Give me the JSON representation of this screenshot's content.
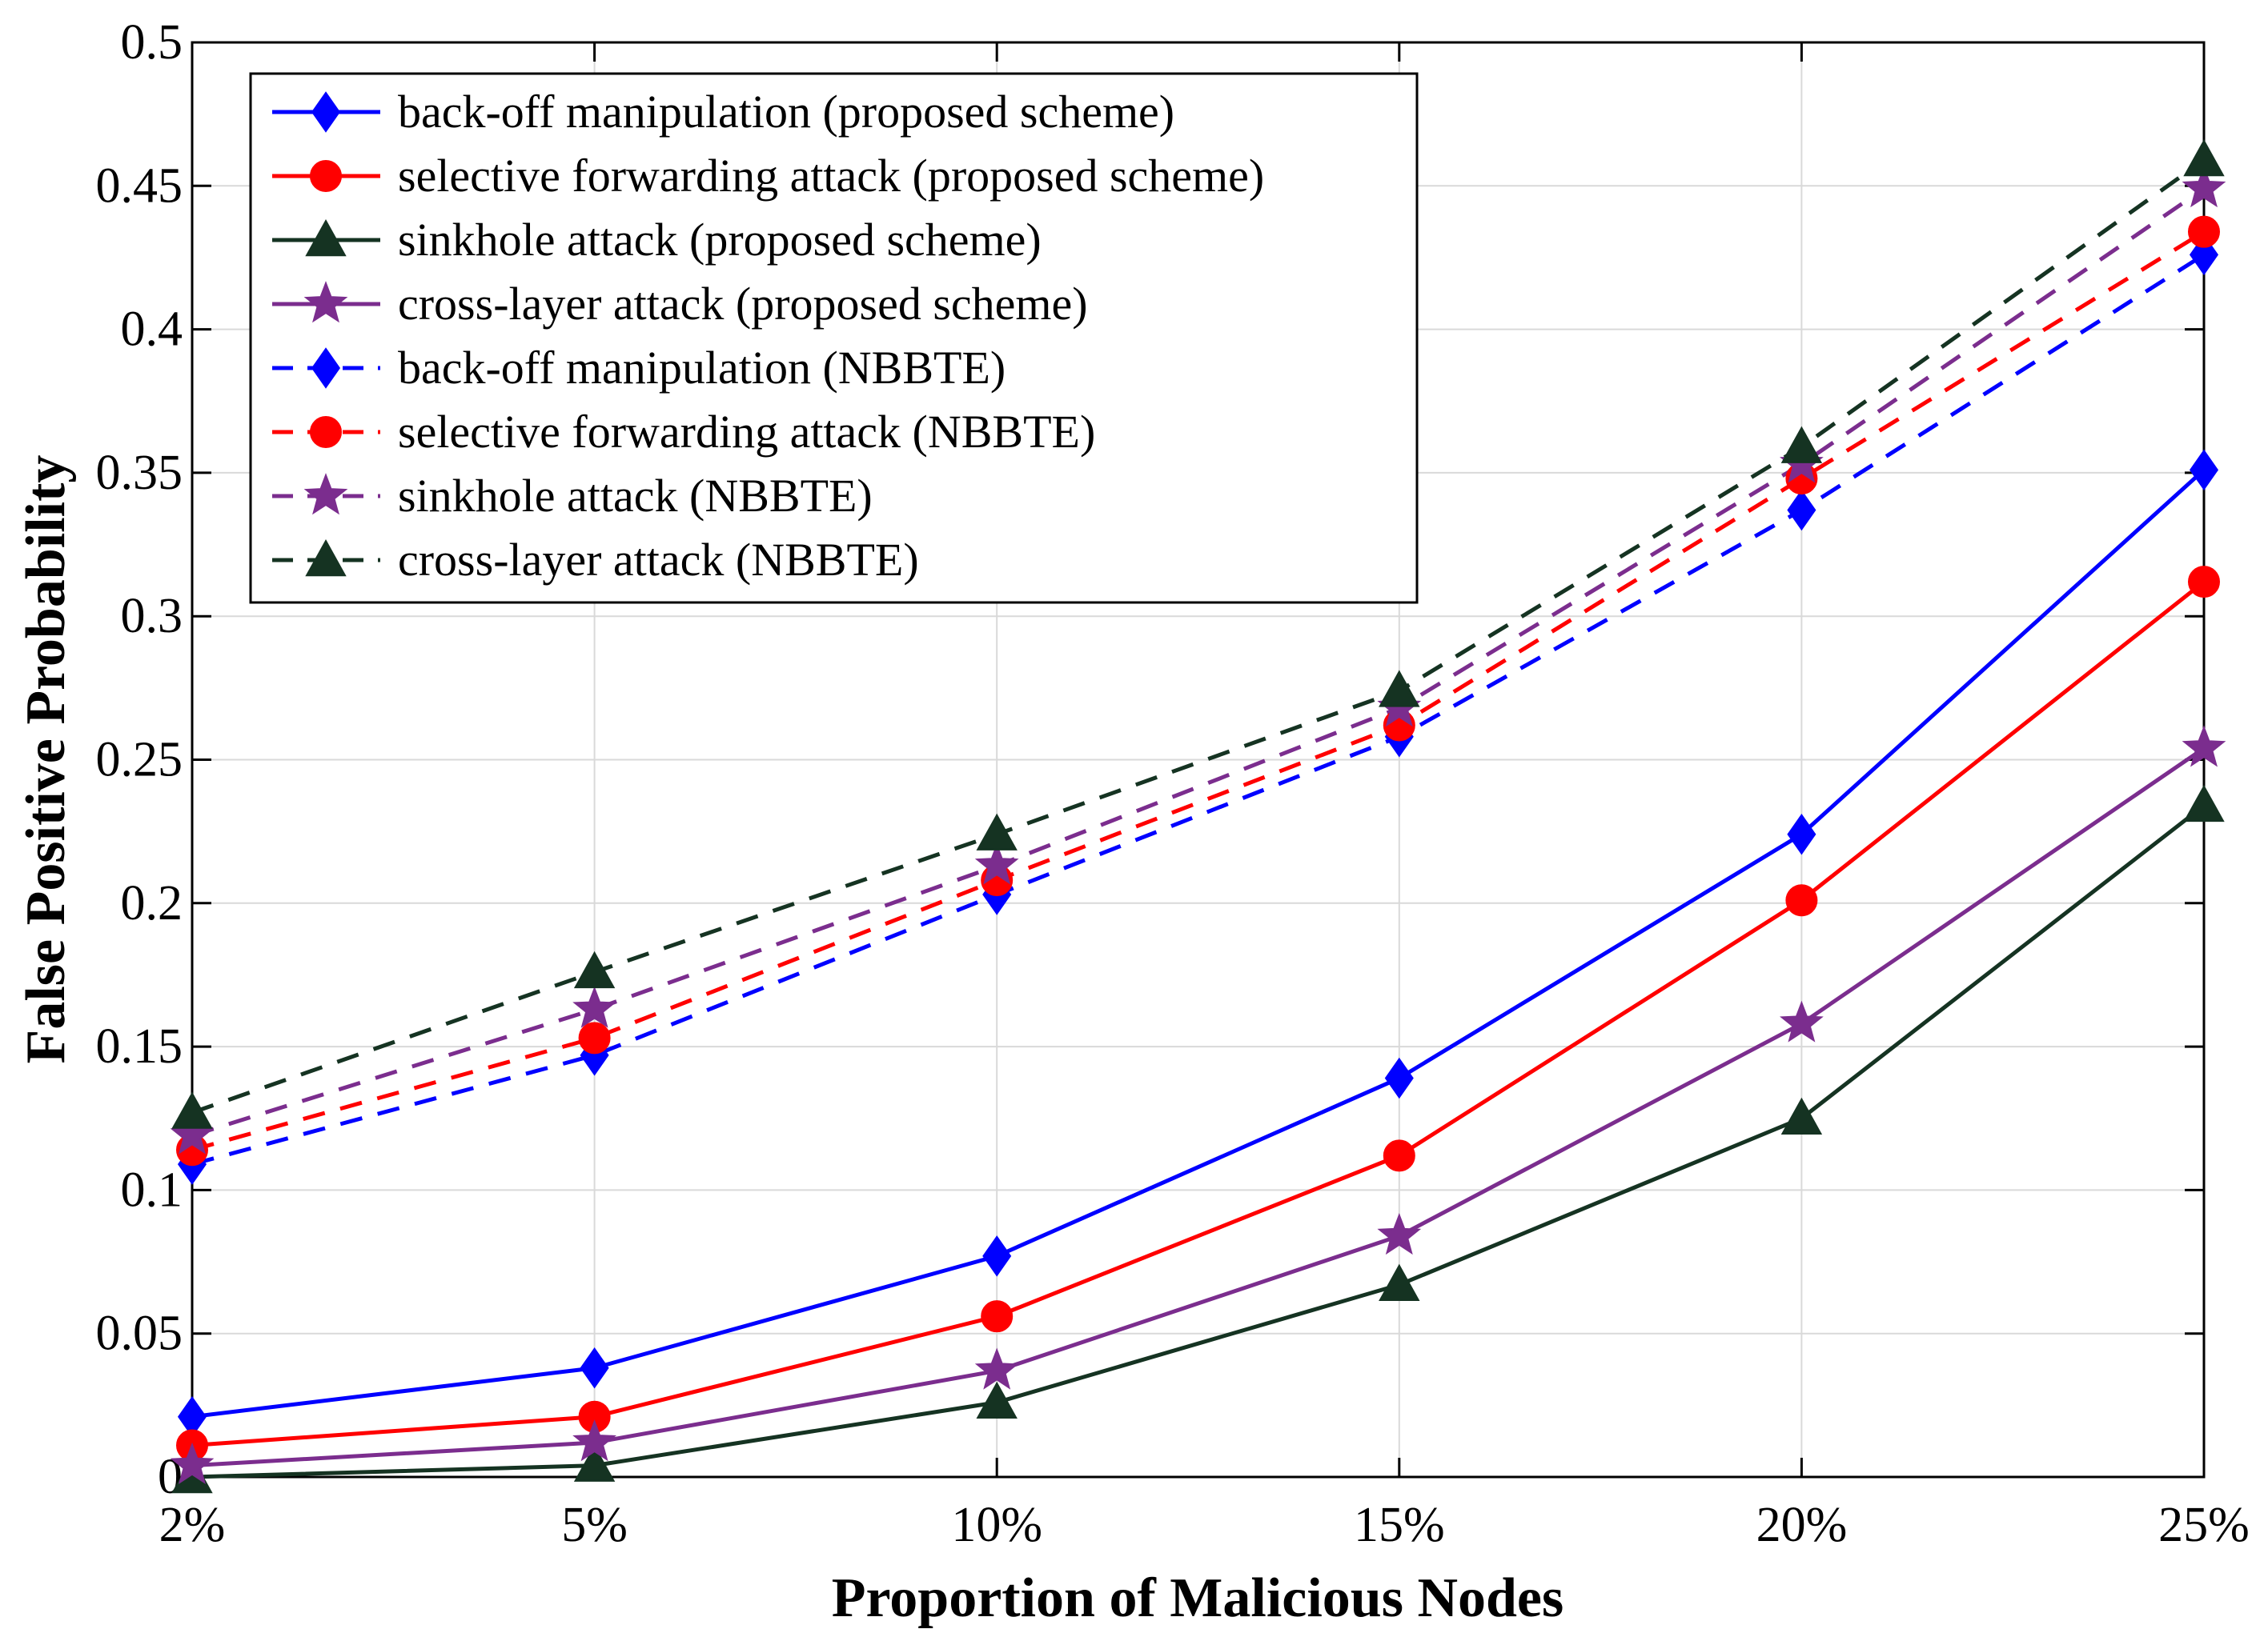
{
  "chart_data": {
    "type": "line",
    "xlabel": "Proportion of Malicious Nodes",
    "ylabel": "False Positive Probability",
    "categories": [
      "2%",
      "5%",
      "10%",
      "15%",
      "20%",
      "25%"
    ],
    "ylim": [
      0,
      0.5
    ],
    "yticks": [
      0,
      0.05,
      0.1,
      0.15,
      0.2,
      0.25,
      0.3,
      0.35,
      0.4,
      0.45,
      0.5
    ],
    "ytick_labels": [
      "0",
      "0.05",
      "0.1",
      "0.15",
      "0.2",
      "0.25",
      "0.3",
      "0.35",
      "0.4",
      "0.45",
      "0.5"
    ],
    "grid": true,
    "legend_position": "top-left",
    "series": [
      {
        "name": "back-off manipulation (proposed scheme)",
        "color": "#0000ff",
        "dash": "solid",
        "marker": "diamond",
        "values": [
          0.021,
          0.038,
          0.077,
          0.139,
          0.224,
          0.351
        ]
      },
      {
        "name": "selective forwarding attack (proposed scheme)",
        "color": "#ff0000",
        "dash": "solid",
        "marker": "circle",
        "values": [
          0.011,
          0.021,
          0.056,
          0.112,
          0.201,
          0.312
        ]
      },
      {
        "name": "sinkhole attack (proposed scheme)",
        "color": "#153322",
        "dash": "solid",
        "marker": "triangle",
        "values": [
          0.0,
          0.004,
          0.026,
          0.067,
          0.125,
          0.234
        ]
      },
      {
        "name": "cross-layer attack (proposed scheme)",
        "color": "#7b2d8e",
        "dash": "solid",
        "marker": "star",
        "values": [
          0.004,
          0.012,
          0.037,
          0.084,
          0.158,
          0.254
        ]
      },
      {
        "name": "back-off manipulation (NBBTE)",
        "color": "#0000ff",
        "dash": "dashed",
        "marker": "diamond",
        "values": [
          0.109,
          0.147,
          0.203,
          0.258,
          0.337,
          0.426
        ]
      },
      {
        "name": "selective forwarding attack (NBBTE)",
        "color": "#ff0000",
        "dash": "dashed",
        "marker": "circle",
        "values": [
          0.114,
          0.153,
          0.208,
          0.262,
          0.348,
          0.434
        ]
      },
      {
        "name": "sinkhole attack (NBBTE)",
        "color": "#7b2d8e",
        "dash": "dashed",
        "marker": "star",
        "values": [
          0.119,
          0.163,
          0.213,
          0.268,
          0.353,
          0.449
        ]
      },
      {
        "name": "cross-layer attack (NBBTE)",
        "color": "#153322",
        "dash": "dashed",
        "marker": "triangle",
        "values": [
          0.127,
          0.176,
          0.224,
          0.274,
          0.359,
          0.459
        ]
      }
    ]
  }
}
